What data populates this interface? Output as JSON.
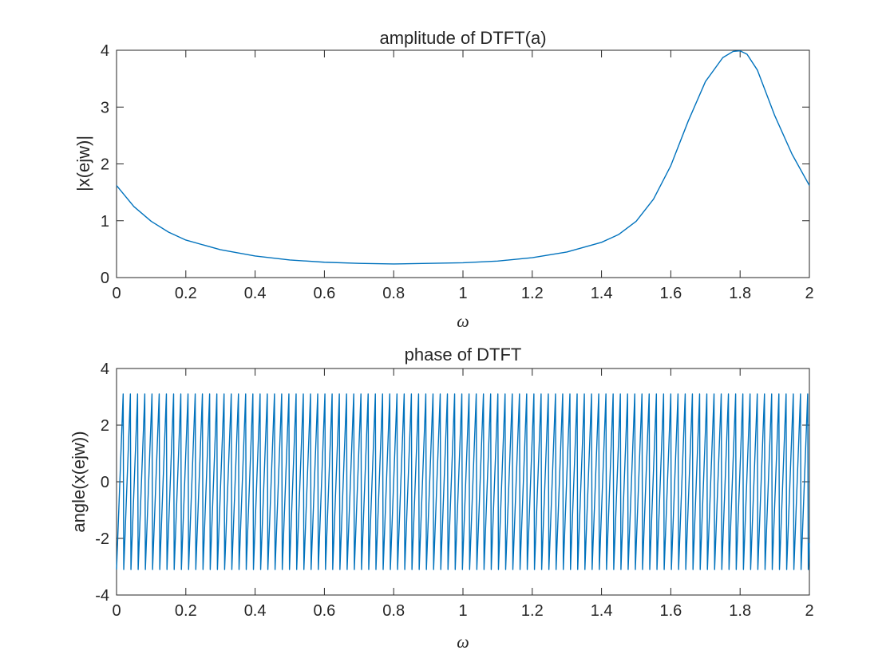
{
  "chart_data": [
    {
      "type": "line",
      "title": "amplitude of DTFT(a)",
      "xlabel": "ω",
      "ylabel": "|x(ejw)|",
      "xlim": [
        0,
        2
      ],
      "ylim": [
        0,
        4
      ],
      "xticks": [
        "0",
        "0.2",
        "0.4",
        "0.6",
        "0.8",
        "1",
        "1.2",
        "1.4",
        "1.6",
        "1.8",
        "2"
      ],
      "yticks": [
        "0",
        "1",
        "2",
        "3",
        "4"
      ],
      "grid": false,
      "line_color": "#0072BD",
      "series": [
        {
          "x": [
            0,
            0.05,
            0.1,
            0.15,
            0.2,
            0.3,
            0.4,
            0.5,
            0.6,
            0.7,
            0.8,
            0.9,
            1.0,
            1.1,
            1.2,
            1.3,
            1.4,
            1.45,
            1.5,
            1.55,
            1.6,
            1.65,
            1.7,
            1.75,
            1.78,
            1.8,
            1.82,
            1.85,
            1.9,
            1.95,
            2.0
          ],
          "y": [
            1.62,
            1.25,
            0.99,
            0.8,
            0.66,
            0.49,
            0.38,
            0.31,
            0.27,
            0.25,
            0.24,
            0.25,
            0.26,
            0.29,
            0.35,
            0.45,
            0.62,
            0.76,
            0.99,
            1.38,
            1.97,
            2.75,
            3.45,
            3.87,
            3.98,
            3.99,
            3.93,
            3.65,
            2.85,
            2.17,
            1.62
          ]
        }
      ]
    },
    {
      "type": "line",
      "title": "phase of DTFT",
      "xlabel": "ω",
      "ylabel": "angle(x(ejw))",
      "xlim": [
        0,
        2
      ],
      "ylim": [
        -4,
        4
      ],
      "xticks": [
        "0",
        "0.2",
        "0.4",
        "0.6",
        "0.8",
        "1",
        "1.2",
        "1.4",
        "1.6",
        "1.8",
        "2"
      ],
      "yticks": [
        "-4",
        "-2",
        "0",
        "2",
        "4"
      ],
      "grid": false,
      "line_color": "#0072BD",
      "series": [
        {
          "description": "sawtooth wrapping between about -3.1 and 3.1",
          "x_start": 0,
          "x_end": 2,
          "period": 0.0208,
          "y_max": 3.1,
          "y_min": -3.1
        }
      ]
    }
  ]
}
